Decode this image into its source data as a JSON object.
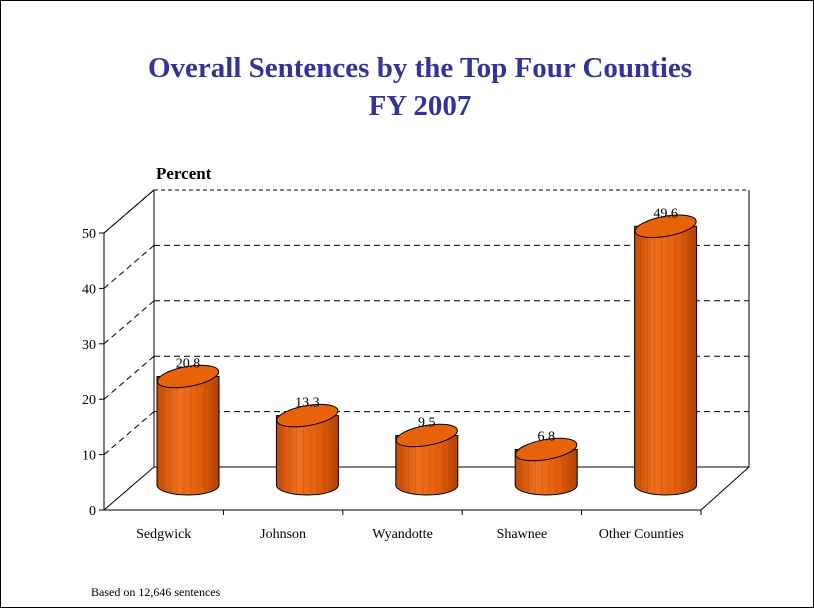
{
  "chart_data": {
    "type": "bar",
    "title_lines": [
      "Overall Sentences by the Top Four Counties",
      "FY 2007"
    ],
    "ylabel": "Percent",
    "xlabel": "",
    "categories": [
      "Sedgwick",
      "Johnson",
      "Wyandotte",
      "Shawnee",
      "Other Counties"
    ],
    "values": [
      20.8,
      13.3,
      9.5,
      6.8,
      49.6
    ],
    "value_labels": [
      "20.8",
      "13.3",
      "9.5",
      "6.8",
      "49.6"
    ],
    "ylim": [
      0,
      50
    ],
    "yticks": [
      "0",
      "10",
      "20",
      "30",
      "40",
      "50"
    ],
    "grid": true,
    "legend": "none",
    "style": "3d-cylinder",
    "colors": {
      "bar": "#e8620a",
      "bar_dark": "#a83c00",
      "bar_light": "#f58a3a",
      "title": "#333399"
    }
  },
  "footnote": "Based on 12,646 sentences"
}
